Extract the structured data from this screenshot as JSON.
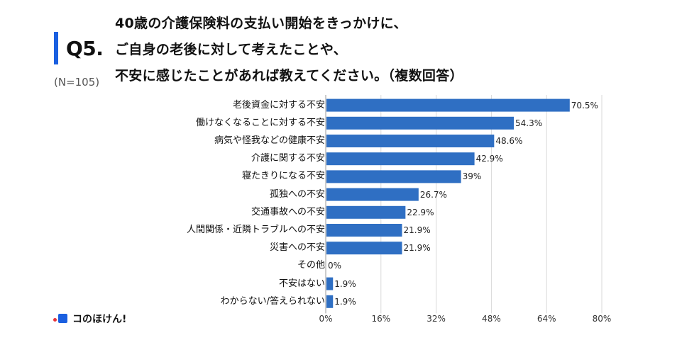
{
  "header": {
    "q_label": "Q5.",
    "title_lines": [
      "40歳の介護保険料の支払い開始をきっかけに、",
      "ご自身の老後に対して考えたことや、",
      "不安に感じたことがあれば教えてください。（複数回答）"
    ],
    "sample_size": "(N=105)"
  },
  "colors": {
    "accent": "#1a5fe0",
    "bar": "#2f6fc3",
    "grid": "#d8d8d8",
    "logo_red": "#e8333a"
  },
  "logo": {
    "text": "コのほけん!",
    "icon": "konohoken-logo-icon"
  },
  "chart_data": {
    "type": "bar",
    "orientation": "horizontal",
    "categories": [
      "老後資金に対する不安",
      "働けなくなることに対する不安",
      "病気や怪我などの健康不安",
      "介護に関する不安",
      "寝たきりになる不安",
      "孤独への不安",
      "交通事故への不安",
      "人間関係・近隣トラブルへの不安",
      "災害への不安",
      "その他",
      "不安はない",
      "わからない/答えられない"
    ],
    "values": [
      70.5,
      54.3,
      48.6,
      42.9,
      39,
      26.7,
      22.9,
      21.9,
      21.9,
      0,
      1.9,
      1.9
    ],
    "value_labels": [
      "70.5%",
      "54.3%",
      "48.6%",
      "42.9%",
      "39%",
      "26.7%",
      "22.9%",
      "21.9%",
      "21.9%",
      "0%",
      "1.9%",
      "1.9%"
    ],
    "xlim": [
      0,
      80
    ],
    "xticks": [
      0,
      16,
      32,
      48,
      64,
      80
    ],
    "xtick_labels": [
      "0%",
      "16%",
      "32%",
      "48%",
      "64%",
      "80%"
    ],
    "grid": true
  }
}
